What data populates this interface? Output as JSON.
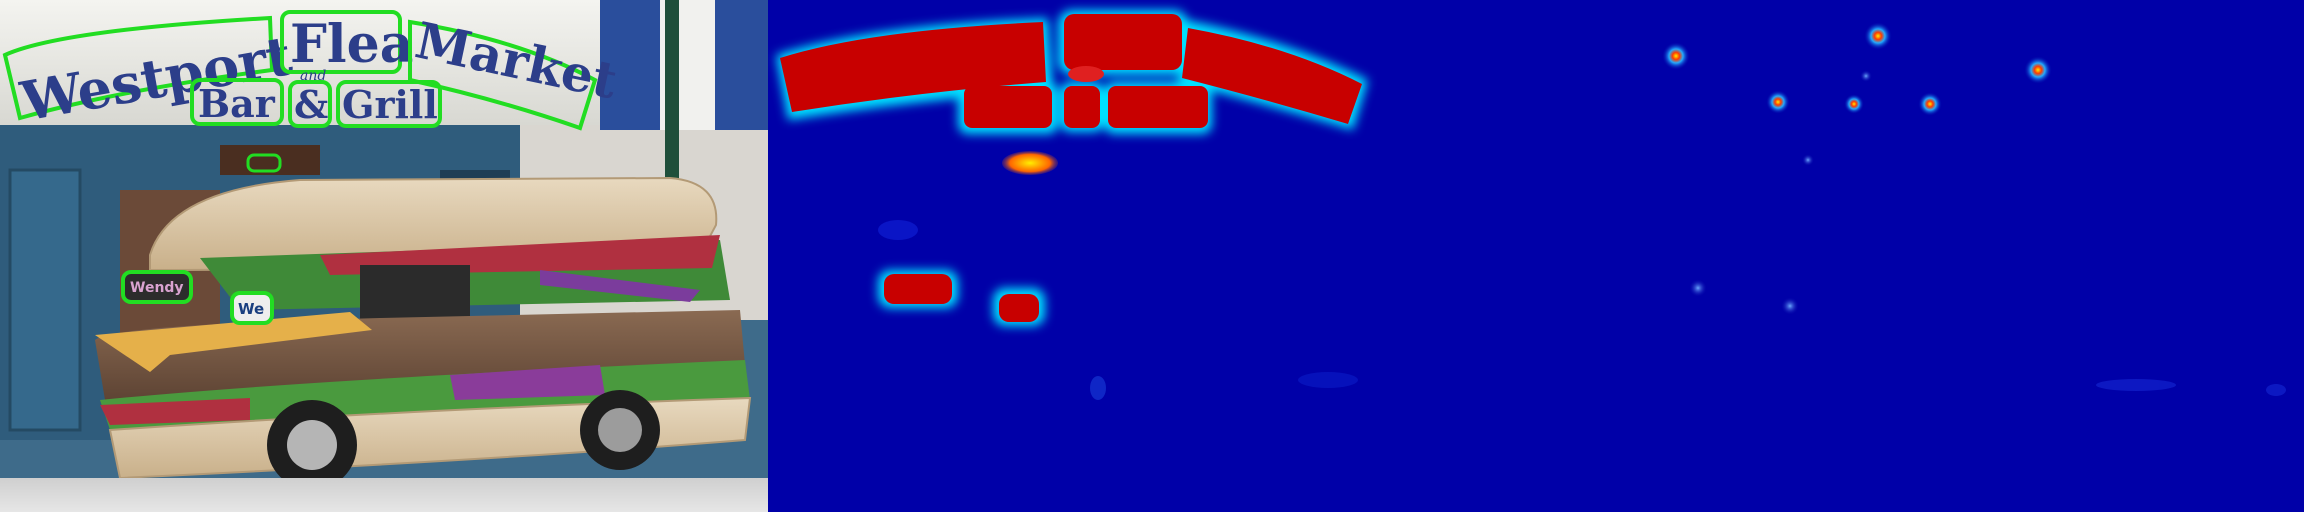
{
  "panels": [
    {
      "id": "photo"
    },
    {
      "id": "region-heatmap"
    },
    {
      "id": "character-heatmap"
    }
  ],
  "sign": {
    "line1_word1": "Westport",
    "line1_word2": "Flea",
    "line1_word3": "Market",
    "line2_word1": "Bar",
    "line2_amp": "&",
    "line2_word2": "Grill",
    "connector": "and",
    "storefront_small": "Wendy",
    "truck_small": "We"
  },
  "colors": {
    "detection_outline": "#22dd22",
    "awning_blue": "#2a4e9c",
    "heatmap_background": "#0000a8",
    "heatmap_hot": "#c80000"
  }
}
